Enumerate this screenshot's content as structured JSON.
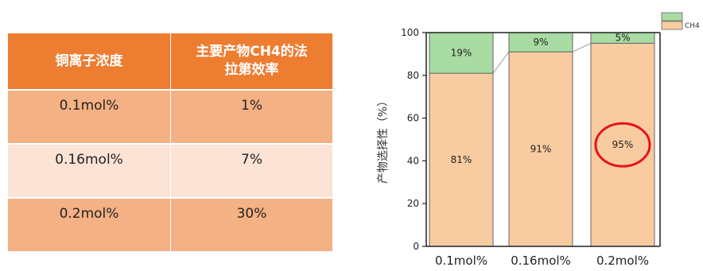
{
  "table": {
    "headers": [
      "铜离子浓度",
      "主要产物CH4的法\n拉第效率"
    ],
    "rows": [
      [
        "0.1mol%",
        "1%"
      ],
      [
        "0.16mol%",
        "7%"
      ],
      [
        "0.2mol%",
        "30%"
      ]
    ],
    "colors": {
      "header": "#ed7d31",
      "row_dark": "#f4b183",
      "row_light": "#fbe3d6"
    }
  },
  "chart_data": {
    "type": "bar",
    "stacked": true,
    "categories": [
      "0.1mol%",
      "0.16mol%",
      "0.2mol%"
    ],
    "series": [
      {
        "name": "CH4",
        "values": [
          81,
          91,
          95
        ],
        "labels": [
          "81%",
          "91%",
          "95%"
        ],
        "color": "#f8cba0"
      },
      {
        "name": "",
        "values": [
          19,
          9,
          5
        ],
        "labels": [
          "19%",
          "9%",
          "5%"
        ],
        "color": "#a8dca3"
      }
    ],
    "ylabel": "产物选择性（%）",
    "ylim": [
      0,
      100
    ],
    "yticks": [
      0,
      20,
      40,
      60,
      80,
      100
    ],
    "legend": "top-right",
    "grid": false,
    "highlight": {
      "category": "0.2mol%",
      "series": "CH4",
      "color": "#e8121b"
    }
  }
}
